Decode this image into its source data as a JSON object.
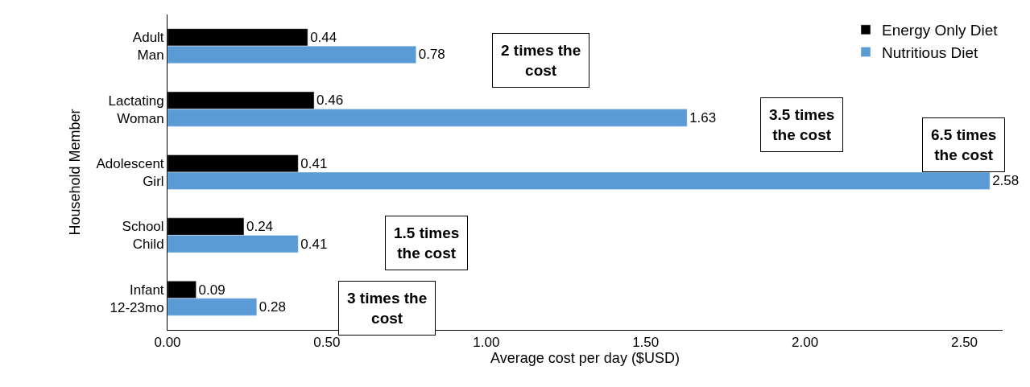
{
  "chart_data": {
    "type": "bar",
    "orientation": "horizontal",
    "xlabel": "Average cost per day ($USD)",
    "ylabel": "Household Member",
    "categories": [
      "Adult\nMan",
      "Lactating\nWoman",
      "Adolescent\nGirl",
      "School\nChild",
      "Infant\n12-23mo"
    ],
    "series": [
      {
        "name": "Energy Only Diet",
        "color": "#000000",
        "values": [
          0.44,
          0.46,
          0.41,
          0.24,
          0.09
        ]
      },
      {
        "name": "Nutritious Diet",
        "color": "#5b9bd5",
        "values": [
          0.78,
          1.63,
          2.58,
          0.41,
          0.28
        ]
      }
    ],
    "xlim": [
      0,
      2.62
    ],
    "xticks": [
      {
        "value": 0,
        "label": "0.00"
      },
      {
        "value": 0.5,
        "label": "0.50"
      },
      {
        "value": 1,
        "label": "1.00"
      },
      {
        "value": 1.5,
        "label": "1.50"
      },
      {
        "value": 2,
        "label": "2.00"
      },
      {
        "value": 2.5,
        "label": "2.50"
      }
    ],
    "data_labels": true,
    "legend": "top right",
    "annotations": [
      "2 times the\ncost",
      "3.5 times\nthe cost",
      "6.5 times\nthe cost",
      "1.5 times\nthe cost",
      "3 times the\ncost"
    ]
  }
}
